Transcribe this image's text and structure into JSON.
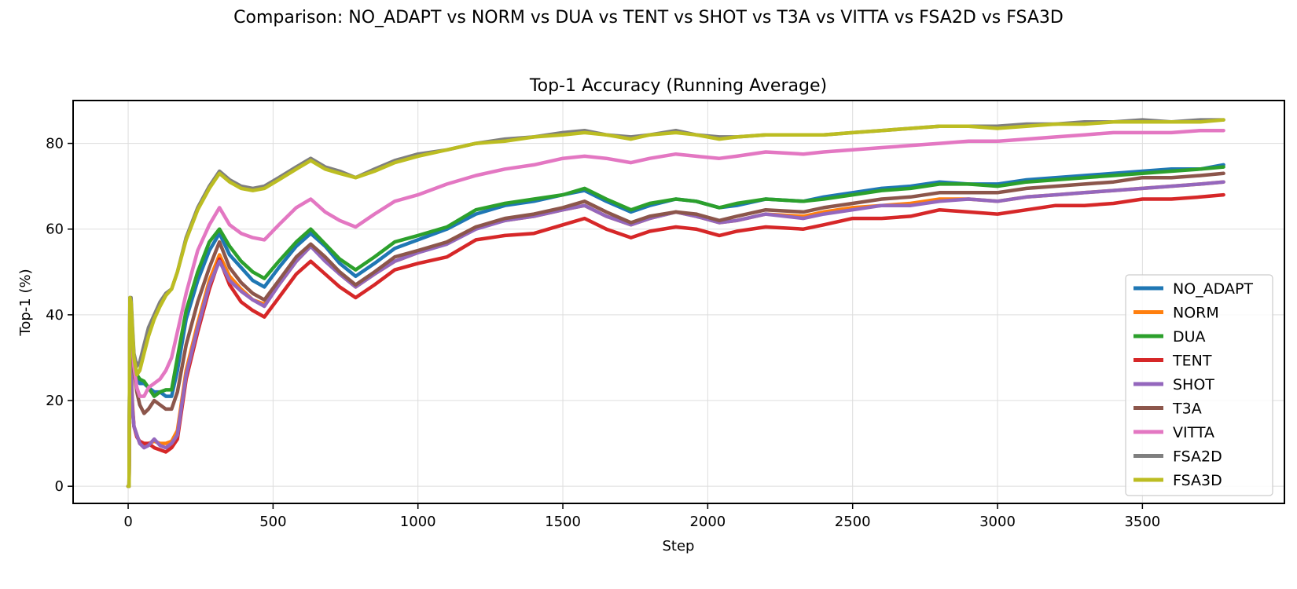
{
  "figure": {
    "suptitle": "Comparison: NO_ADAPT vs NORM vs DUA vs TENT vs SHOT vs T3A vs VITTA vs FSA2D vs FSA3D"
  },
  "chart_data": {
    "type": "line",
    "title": "Top-1 Accuracy (Running Average)",
    "xlabel": "Step",
    "ylabel": "Top-1 (%)",
    "xlim": [
      -190,
      3990
    ],
    "ylim": [
      -4,
      90
    ],
    "xticks": [
      0,
      500,
      1000,
      1500,
      2000,
      2500,
      3000,
      3500
    ],
    "yticks": [
      0,
      20,
      40,
      60,
      80
    ],
    "grid": true,
    "legend_position": "lower right",
    "series": [
      {
        "name": "NO_ADAPT",
        "color": "#1f77b4",
        "x": [
          0,
          3,
          6,
          10,
          15,
          20,
          30,
          40,
          55,
          70,
          90,
          110,
          130,
          150,
          170,
          200,
          240,
          280,
          315,
          350,
          390,
          430,
          470,
          520,
          580,
          630,
          680,
          730,
          785,
          850,
          920,
          1000,
          1100,
          1200,
          1300,
          1400,
          1500,
          1575,
          1650,
          1735,
          1800,
          1890,
          1960,
          2040,
          2100,
          2200,
          2330,
          2400,
          2500,
          2600,
          2700,
          2800,
          2900,
          3000,
          3100,
          3200,
          3300,
          3400,
          3500,
          3600,
          3700,
          3780
        ],
        "y": [
          0,
          0,
          44,
          43,
          36,
          30,
          26,
          24,
          24,
          23,
          22,
          22,
          21,
          21,
          27,
          39,
          48,
          55,
          59,
          54,
          51,
          48,
          46.5,
          51,
          56,
          59,
          56,
          52,
          49,
          52,
          55.5,
          57.5,
          60,
          63.5,
          65.5,
          66.5,
          68,
          69,
          66.5,
          64,
          65.5,
          67,
          66.5,
          65,
          65.5,
          67,
          66.5,
          67.5,
          68.5,
          69.5,
          70,
          71,
          70.5,
          70.5,
          71.5,
          72,
          72.5,
          73,
          73.5,
          74,
          74,
          75
        ]
      },
      {
        "name": "NORM",
        "color": "#ff7f0e",
        "x": [
          0,
          3,
          6,
          10,
          15,
          20,
          30,
          40,
          55,
          70,
          90,
          110,
          130,
          150,
          170,
          200,
          240,
          280,
          315,
          350,
          390,
          430,
          470,
          520,
          580,
          630,
          680,
          730,
          785,
          850,
          920,
          1000,
          1100,
          1200,
          1300,
          1400,
          1500,
          1575,
          1650,
          1735,
          1800,
          1890,
          1960,
          2040,
          2100,
          2200,
          2330,
          2400,
          2500,
          2600,
          2700,
          2800,
          2900,
          3000,
          3100,
          3200,
          3300,
          3400,
          3500,
          3600,
          3700,
          3780
        ],
        "y": [
          0,
          0,
          35,
          28,
          19,
          14,
          12,
          10,
          9.5,
          10,
          10.5,
          10,
          10,
          10.5,
          13,
          27,
          38,
          48,
          54,
          49,
          46,
          43.5,
          42.5,
          47,
          52.5,
          56,
          53,
          49.5,
          46.5,
          49.5,
          52.5,
          54.5,
          57,
          60.5,
          62,
          63,
          64.5,
          65.5,
          63,
          61,
          62.5,
          64,
          63,
          61.5,
          62,
          63.5,
          63,
          64,
          65,
          65.5,
          66,
          67,
          67,
          66.5,
          67.5,
          68,
          68.5,
          69,
          69.5,
          70,
          70.5,
          71
        ]
      },
      {
        "name": "DUA",
        "color": "#2ca02c",
        "x": [
          0,
          3,
          6,
          10,
          15,
          20,
          30,
          40,
          55,
          70,
          90,
          110,
          130,
          150,
          170,
          200,
          240,
          280,
          315,
          350,
          390,
          430,
          470,
          520,
          580,
          630,
          680,
          730,
          785,
          850,
          920,
          1000,
          1100,
          1200,
          1300,
          1400,
          1500,
          1575,
          1650,
          1735,
          1800,
          1890,
          1960,
          2040,
          2100,
          2200,
          2330,
          2400,
          2500,
          2600,
          2700,
          2800,
          2900,
          3000,
          3100,
          3200,
          3300,
          3400,
          3500,
          3600,
          3700,
          3780
        ],
        "y": [
          0,
          0,
          43,
          42,
          35,
          30,
          26,
          25,
          24.5,
          23,
          21,
          22,
          22.5,
          22.5,
          30,
          41,
          50,
          57,
          60,
          56,
          52.5,
          50,
          48.5,
          52.5,
          57,
          60,
          56.5,
          53,
          50.5,
          53.5,
          57,
          58.5,
          60.5,
          64.5,
          66,
          67,
          68,
          69.5,
          67,
          64.5,
          66,
          67,
          66.5,
          65,
          66,
          67,
          66.5,
          67,
          68,
          69,
          69.5,
          70.5,
          70.5,
          70,
          71,
          71.5,
          72,
          72.5,
          73,
          73.5,
          74,
          74.5
        ]
      },
      {
        "name": "TENT",
        "color": "#d62728",
        "x": [
          0,
          3,
          6,
          10,
          15,
          20,
          30,
          40,
          55,
          70,
          90,
          110,
          130,
          150,
          170,
          200,
          240,
          280,
          315,
          350,
          390,
          430,
          470,
          520,
          580,
          630,
          680,
          730,
          785,
          850,
          920,
          1000,
          1100,
          1200,
          1300,
          1400,
          1500,
          1575,
          1650,
          1735,
          1800,
          1890,
          1960,
          2040,
          2100,
          2200,
          2330,
          2400,
          2500,
          2600,
          2700,
          2800,
          2900,
          3000,
          3100,
          3200,
          3300,
          3400,
          3500,
          3600,
          3700,
          3780
        ],
        "y": [
          0,
          0,
          32,
          26,
          18,
          14,
          11.5,
          10.5,
          10,
          10,
          9,
          8.5,
          8,
          9,
          11,
          25,
          36,
          46,
          53,
          47,
          43,
          41,
          39.5,
          44,
          49.5,
          52.5,
          49.5,
          46.5,
          44,
          47,
          50.5,
          52,
          53.5,
          57.5,
          58.5,
          59,
          61,
          62.5,
          60,
          58,
          59.5,
          60.5,
          60,
          58.5,
          59.5,
          60.5,
          60,
          61,
          62.5,
          62.5,
          63,
          64.5,
          64,
          63.5,
          64.5,
          65.5,
          65.5,
          66,
          67,
          67,
          67.5,
          68
        ]
      },
      {
        "name": "SHOT",
        "color": "#9467bd",
        "x": [
          0,
          3,
          6,
          10,
          15,
          20,
          30,
          40,
          55,
          70,
          90,
          110,
          130,
          150,
          170,
          200,
          240,
          280,
          315,
          350,
          390,
          430,
          470,
          520,
          580,
          630,
          680,
          730,
          785,
          850,
          920,
          1000,
          1100,
          1200,
          1300,
          1400,
          1500,
          1575,
          1650,
          1735,
          1800,
          1890,
          1960,
          2040,
          2100,
          2200,
          2330,
          2400,
          2500,
          2600,
          2700,
          2800,
          2900,
          3000,
          3100,
          3200,
          3300,
          3400,
          3500,
          3600,
          3700,
          3780
        ],
        "y": [
          0,
          0,
          34,
          27,
          18,
          14,
          12,
          10,
          9,
          9.5,
          11,
          9.5,
          9,
          10,
          12,
          26,
          37,
          47,
          52.5,
          48,
          45.5,
          43.5,
          42,
          47,
          52.5,
          56,
          52.5,
          49.5,
          46.5,
          49.5,
          52.5,
          54.5,
          56.5,
          60,
          62,
          63,
          64.5,
          65.5,
          63,
          61,
          62.5,
          64,
          63,
          61.5,
          62,
          63.5,
          62.5,
          63.5,
          64.5,
          65.5,
          65.5,
          66.5,
          67,
          66.5,
          67.5,
          68,
          68.5,
          69,
          69.5,
          70,
          70.5,
          71
        ]
      },
      {
        "name": "T3A",
        "color": "#8c564b",
        "x": [
          0,
          3,
          6,
          10,
          15,
          20,
          30,
          40,
          55,
          70,
          90,
          110,
          130,
          150,
          170,
          200,
          240,
          280,
          315,
          350,
          390,
          430,
          470,
          520,
          580,
          630,
          680,
          730,
          785,
          850,
          920,
          1000,
          1100,
          1200,
          1300,
          1400,
          1500,
          1575,
          1650,
          1735,
          1800,
          1890,
          1960,
          2040,
          2100,
          2200,
          2330,
          2400,
          2500,
          2600,
          2700,
          2800,
          2900,
          3000,
          3100,
          3200,
          3300,
          3400,
          3500,
          3600,
          3700,
          3780
        ],
        "y": [
          0,
          0,
          42,
          40,
          32,
          27,
          22,
          19,
          17,
          18,
          20,
          19,
          18,
          18,
          22,
          33,
          43,
          51,
          57,
          51,
          47.5,
          45,
          43.5,
          48,
          53.5,
          56.5,
          53.5,
          50,
          47,
          50,
          53.5,
          55,
          57,
          60.5,
          62.5,
          63.5,
          65,
          66.5,
          64,
          61.5,
          63,
          64,
          63.5,
          62,
          63,
          64.5,
          64,
          65,
          66,
          67,
          67.5,
          68.5,
          68.5,
          68.5,
          69.5,
          70,
          70.5,
          71,
          72,
          72,
          72.5,
          73
        ]
      },
      {
        "name": "VITTA",
        "color": "#e377c2",
        "x": [
          0,
          3,
          6,
          10,
          15,
          20,
          30,
          40,
          55,
          70,
          90,
          110,
          130,
          150,
          170,
          200,
          240,
          280,
          315,
          350,
          390,
          430,
          470,
          520,
          580,
          630,
          680,
          730,
          785,
          850,
          920,
          1000,
          1100,
          1200,
          1300,
          1400,
          1500,
          1575,
          1650,
          1735,
          1800,
          1890,
          1960,
          2040,
          2100,
          2200,
          2330,
          2400,
          2500,
          2600,
          2700,
          2800,
          2900,
          3000,
          3100,
          3200,
          3300,
          3400,
          3500,
          3600,
          3700,
          3780
        ],
        "y": [
          0,
          0,
          43,
          42,
          34,
          28,
          23,
          21,
          21,
          23,
          24,
          25,
          27,
          30,
          36,
          45,
          55,
          61,
          65,
          61,
          59,
          58,
          57.5,
          61,
          65,
          67,
          64,
          62,
          60.5,
          63.5,
          66.5,
          68,
          70.5,
          72.5,
          74,
          75,
          76.5,
          77,
          76.5,
          75.5,
          76.5,
          77.5,
          77,
          76.5,
          77,
          78,
          77.5,
          78,
          78.5,
          79,
          79.5,
          80,
          80.5,
          80.5,
          81,
          81.5,
          82,
          82.5,
          82.5,
          82.5,
          83,
          83
        ]
      },
      {
        "name": "FSA2D",
        "color": "#7f7f7f",
        "x": [
          0,
          3,
          6,
          10,
          15,
          20,
          30,
          40,
          55,
          70,
          90,
          110,
          130,
          150,
          170,
          200,
          240,
          280,
          315,
          350,
          390,
          430,
          470,
          520,
          580,
          630,
          680,
          730,
          785,
          850,
          920,
          1000,
          1100,
          1200,
          1300,
          1400,
          1500,
          1575,
          1650,
          1735,
          1800,
          1890,
          1960,
          2040,
          2100,
          2200,
          2330,
          2400,
          2500,
          2600,
          2700,
          2800,
          2900,
          3000,
          3100,
          3200,
          3300,
          3400,
          3500,
          3600,
          3700,
          3780
        ],
        "y": [
          0,
          0,
          44,
          44,
          37,
          31,
          28,
          29,
          33,
          37,
          40,
          43,
          45,
          46,
          50,
          58,
          65,
          70,
          73.5,
          71.5,
          70,
          69.5,
          70,
          72,
          74.5,
          76.5,
          74.5,
          73.5,
          72,
          74,
          76,
          77.5,
          78.5,
          80,
          81,
          81.5,
          82.5,
          83,
          82,
          81.5,
          82,
          83,
          82,
          81.5,
          81.5,
          82,
          82,
          82,
          82.5,
          83,
          83.5,
          84,
          84,
          84,
          84.5,
          84.5,
          85,
          85,
          85.5,
          85,
          85.5,
          85.5
        ]
      },
      {
        "name": "FSA3D",
        "color": "#bcbd22",
        "x": [
          0,
          3,
          6,
          10,
          15,
          20,
          30,
          40,
          55,
          70,
          90,
          110,
          130,
          150,
          170,
          200,
          240,
          280,
          315,
          350,
          390,
          430,
          470,
          520,
          580,
          630,
          680,
          730,
          785,
          850,
          920,
          1000,
          1100,
          1200,
          1300,
          1400,
          1500,
          1575,
          1650,
          1735,
          1800,
          1890,
          1960,
          2040,
          2100,
          2200,
          2330,
          2400,
          2500,
          2600,
          2700,
          2800,
          2900,
          3000,
          3100,
          3200,
          3300,
          3400,
          3500,
          3600,
          3700,
          3780
        ],
        "y": [
          0,
          0,
          44,
          43,
          36,
          30,
          26,
          27,
          31,
          35,
          39,
          42,
          44.5,
          46,
          50,
          57.5,
          64.5,
          69.5,
          73,
          71,
          69.5,
          69,
          69.5,
          71.5,
          74,
          76,
          74,
          73,
          72,
          73.5,
          75.5,
          77,
          78.5,
          80,
          80.5,
          81.5,
          82,
          82.5,
          82,
          81,
          82,
          82.5,
          82,
          81,
          81.5,
          82,
          82,
          82,
          82.5,
          83,
          83.5,
          84,
          84,
          83.5,
          84,
          84.5,
          84.5,
          85,
          85,
          85,
          85,
          85.5
        ]
      }
    ]
  }
}
